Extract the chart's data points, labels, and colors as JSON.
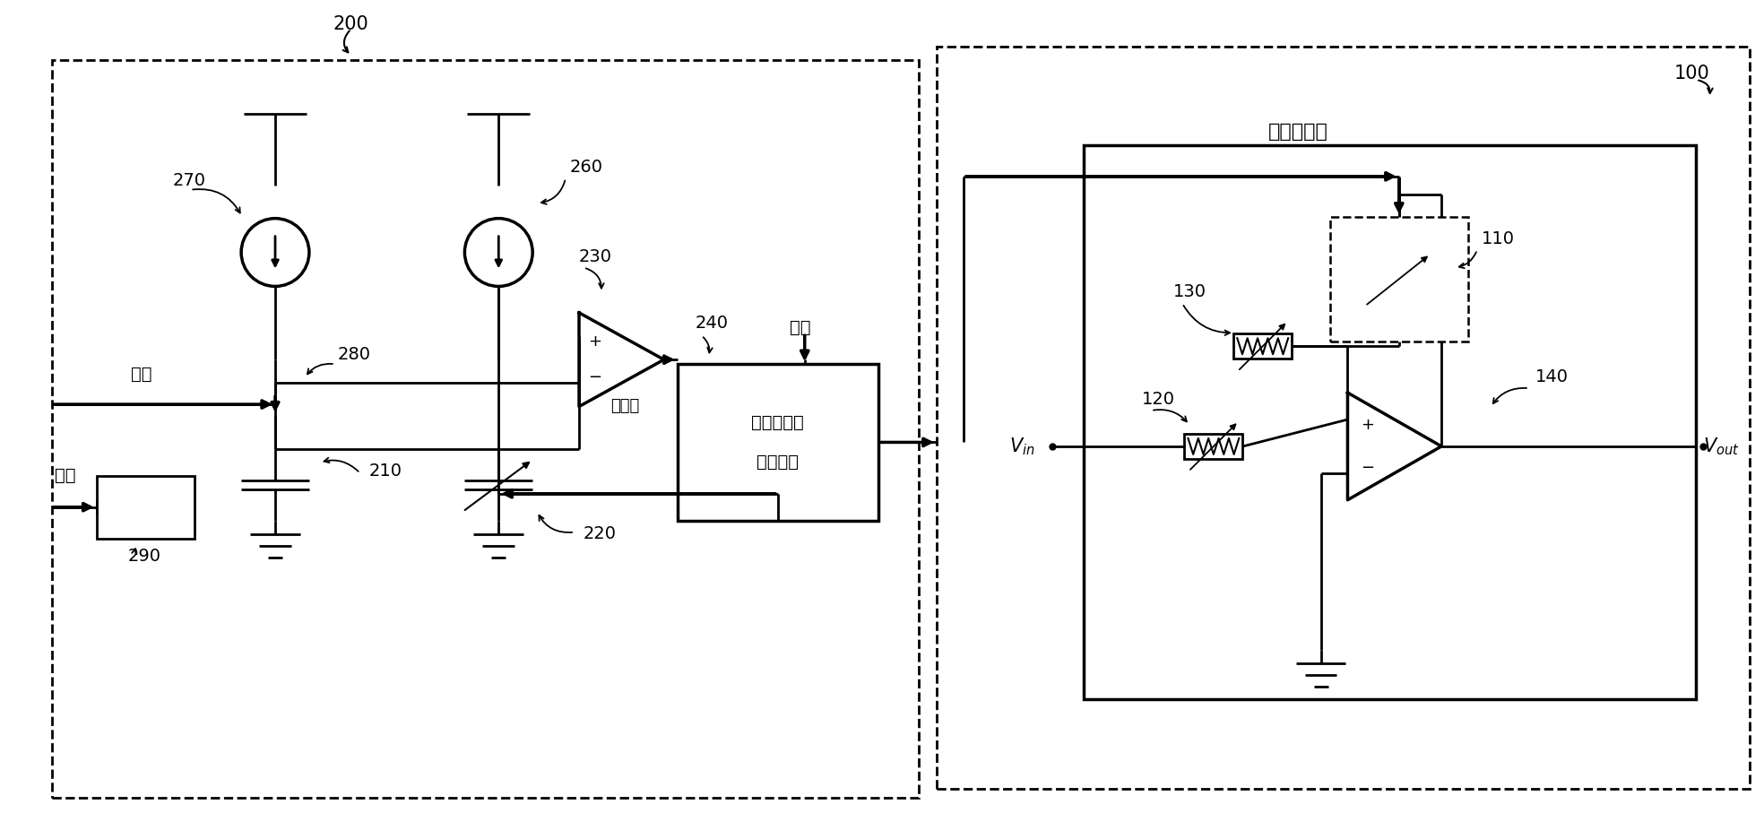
{
  "bg": "#ffffff",
  "label_200": "200",
  "label_270": "270",
  "label_260": "260",
  "label_280": "280",
  "label_230": "230",
  "label_210": "210",
  "label_290": "290",
  "label_240": "240",
  "label_220": "220",
  "label_100": "100",
  "label_110": "110",
  "label_120": "120",
  "label_130": "130",
  "label_140": "140",
  "text_clock": "时钟",
  "text_comparator": "比较器",
  "text_binary1": "二进制搜索",
  "text_binary2": "算法模块",
  "text_freq": "频率控制码"
}
